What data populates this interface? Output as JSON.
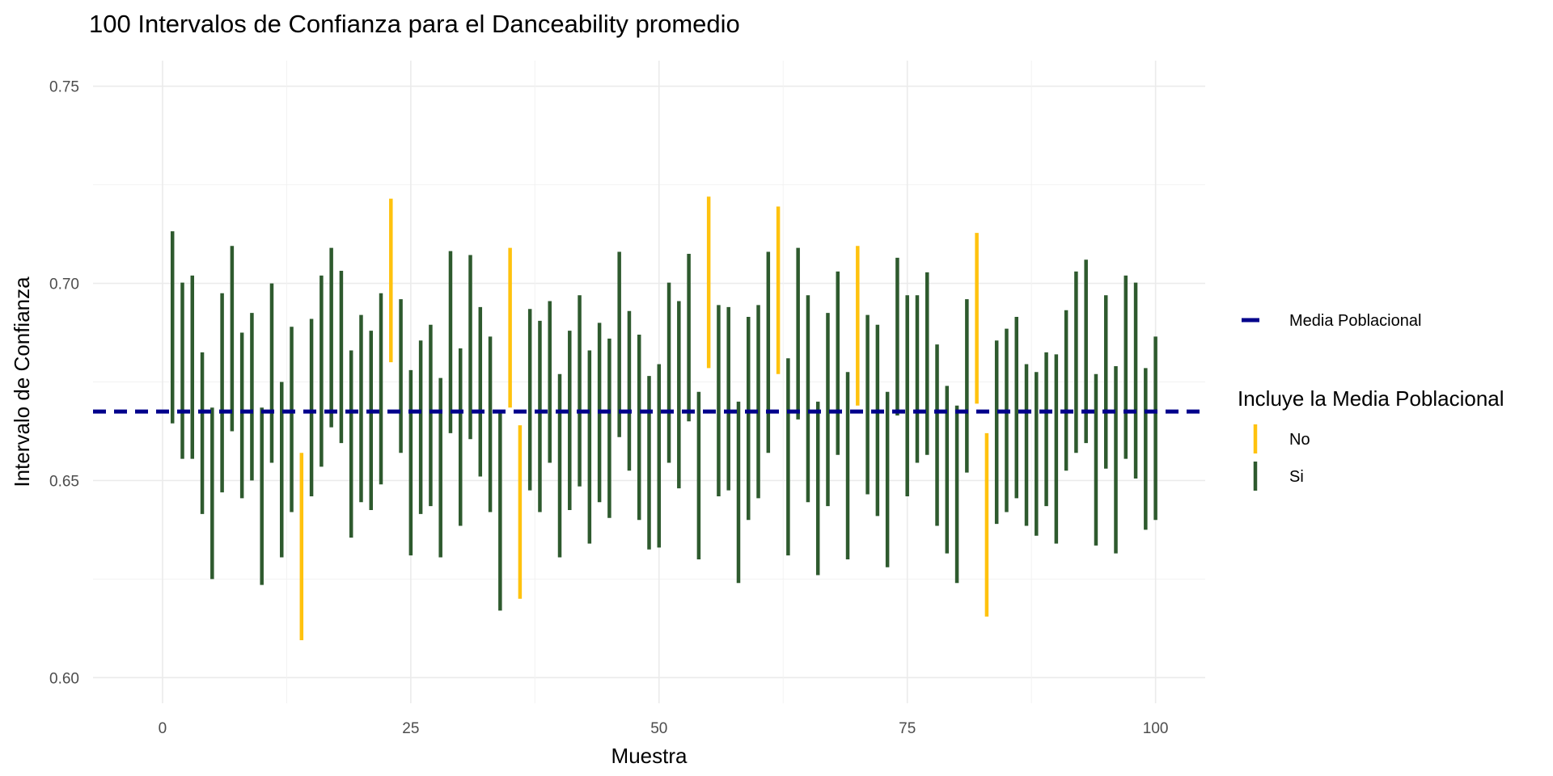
{
  "chart_data": {
    "type": "errorbar",
    "title": "100 Intervalos de Confianza para el Danceability promedio",
    "xlabel": "Muestra",
    "ylabel": "Intervalo de Confianza",
    "xlim": [
      -7,
      105
    ],
    "ylim": [
      0.5935,
      0.7565
    ],
    "x_ticks": [
      0,
      25,
      50,
      75,
      100
    ],
    "x_tick_labels": [
      "0",
      "25",
      "50",
      "75",
      "100"
    ],
    "y_ticks": [
      0.6,
      0.65,
      0.7,
      0.75
    ],
    "y_tick_labels": [
      "0.60",
      "0.65",
      "0.70",
      "0.75"
    ],
    "grid": true,
    "reference_line": {
      "value": 0.6675,
      "label": "Media Poblacional",
      "color": "#00008b",
      "style": "dashed"
    },
    "legend": {
      "position": "right",
      "title": "Incluye la Media Poblacional",
      "items": [
        {
          "label": "No",
          "color": "#ffc20e"
        },
        {
          "label": "Si",
          "color": "#2e5a2e"
        }
      ]
    },
    "intervals": [
      {
        "x": 1,
        "lower": 0.6645,
        "upper": 0.7132,
        "includes": "Si"
      },
      {
        "x": 2,
        "lower": 0.6555,
        "upper": 0.7002,
        "includes": "Si"
      },
      {
        "x": 3,
        "lower": 0.6555,
        "upper": 0.702,
        "includes": "Si"
      },
      {
        "x": 4,
        "lower": 0.6415,
        "upper": 0.6825,
        "includes": "Si"
      },
      {
        "x": 5,
        "lower": 0.625,
        "upper": 0.6685,
        "includes": "Si"
      },
      {
        "x": 6,
        "lower": 0.647,
        "upper": 0.6975,
        "includes": "Si"
      },
      {
        "x": 7,
        "lower": 0.6625,
        "upper": 0.7095,
        "includes": "Si"
      },
      {
        "x": 8,
        "lower": 0.6455,
        "upper": 0.6875,
        "includes": "Si"
      },
      {
        "x": 9,
        "lower": 0.65,
        "upper": 0.6925,
        "includes": "Si"
      },
      {
        "x": 10,
        "lower": 0.6235,
        "upper": 0.6685,
        "includes": "Si"
      },
      {
        "x": 11,
        "lower": 0.6545,
        "upper": 0.7,
        "includes": "Si"
      },
      {
        "x": 12,
        "lower": 0.6305,
        "upper": 0.675,
        "includes": "Si"
      },
      {
        "x": 13,
        "lower": 0.642,
        "upper": 0.689,
        "includes": "Si"
      },
      {
        "x": 14,
        "lower": 0.6095,
        "upper": 0.657,
        "includes": "No"
      },
      {
        "x": 15,
        "lower": 0.646,
        "upper": 0.691,
        "includes": "Si"
      },
      {
        "x": 16,
        "lower": 0.6535,
        "upper": 0.702,
        "includes": "Si"
      },
      {
        "x": 17,
        "lower": 0.6635,
        "upper": 0.709,
        "includes": "Si"
      },
      {
        "x": 18,
        "lower": 0.6595,
        "upper": 0.7032,
        "includes": "Si"
      },
      {
        "x": 19,
        "lower": 0.6355,
        "upper": 0.683,
        "includes": "Si"
      },
      {
        "x": 20,
        "lower": 0.6445,
        "upper": 0.692,
        "includes": "Si"
      },
      {
        "x": 21,
        "lower": 0.6425,
        "upper": 0.688,
        "includes": "Si"
      },
      {
        "x": 22,
        "lower": 0.649,
        "upper": 0.6975,
        "includes": "Si"
      },
      {
        "x": 23,
        "lower": 0.68,
        "upper": 0.7215,
        "includes": "No"
      },
      {
        "x": 24,
        "lower": 0.657,
        "upper": 0.696,
        "includes": "Si"
      },
      {
        "x": 25,
        "lower": 0.631,
        "upper": 0.678,
        "includes": "Si"
      },
      {
        "x": 26,
        "lower": 0.6415,
        "upper": 0.6855,
        "includes": "Si"
      },
      {
        "x": 27,
        "lower": 0.6435,
        "upper": 0.6895,
        "includes": "Si"
      },
      {
        "x": 28,
        "lower": 0.6305,
        "upper": 0.676,
        "includes": "Si"
      },
      {
        "x": 29,
        "lower": 0.662,
        "upper": 0.7082,
        "includes": "Si"
      },
      {
        "x": 30,
        "lower": 0.6385,
        "upper": 0.6835,
        "includes": "Si"
      },
      {
        "x": 31,
        "lower": 0.6605,
        "upper": 0.7072,
        "includes": "Si"
      },
      {
        "x": 32,
        "lower": 0.651,
        "upper": 0.694,
        "includes": "Si"
      },
      {
        "x": 33,
        "lower": 0.642,
        "upper": 0.6865,
        "includes": "Si"
      },
      {
        "x": 34,
        "lower": 0.617,
        "upper": 0.667,
        "includes": "Si"
      },
      {
        "x": 35,
        "lower": 0.6685,
        "upper": 0.709,
        "includes": "No"
      },
      {
        "x": 36,
        "lower": 0.62,
        "upper": 0.664,
        "includes": "No"
      },
      {
        "x": 37,
        "lower": 0.6475,
        "upper": 0.6935,
        "includes": "Si"
      },
      {
        "x": 38,
        "lower": 0.642,
        "upper": 0.6905,
        "includes": "Si"
      },
      {
        "x": 39,
        "lower": 0.6545,
        "upper": 0.6955,
        "includes": "Si"
      },
      {
        "x": 40,
        "lower": 0.6305,
        "upper": 0.677,
        "includes": "Si"
      },
      {
        "x": 41,
        "lower": 0.6425,
        "upper": 0.688,
        "includes": "Si"
      },
      {
        "x": 42,
        "lower": 0.6485,
        "upper": 0.697,
        "includes": "Si"
      },
      {
        "x": 43,
        "lower": 0.634,
        "upper": 0.683,
        "includes": "Si"
      },
      {
        "x": 44,
        "lower": 0.6445,
        "upper": 0.69,
        "includes": "Si"
      },
      {
        "x": 45,
        "lower": 0.6405,
        "upper": 0.686,
        "includes": "Si"
      },
      {
        "x": 46,
        "lower": 0.661,
        "upper": 0.708,
        "includes": "Si"
      },
      {
        "x": 47,
        "lower": 0.6525,
        "upper": 0.693,
        "includes": "Si"
      },
      {
        "x": 48,
        "lower": 0.64,
        "upper": 0.687,
        "includes": "Si"
      },
      {
        "x": 49,
        "lower": 0.6325,
        "upper": 0.6765,
        "includes": "Si"
      },
      {
        "x": 50,
        "lower": 0.633,
        "upper": 0.6795,
        "includes": "Si"
      },
      {
        "x": 51,
        "lower": 0.6545,
        "upper": 0.7002,
        "includes": "Si"
      },
      {
        "x": 52,
        "lower": 0.648,
        "upper": 0.6955,
        "includes": "Si"
      },
      {
        "x": 53,
        "lower": 0.665,
        "upper": 0.7075,
        "includes": "Si"
      },
      {
        "x": 54,
        "lower": 0.63,
        "upper": 0.6725,
        "includes": "Si"
      },
      {
        "x": 55,
        "lower": 0.6785,
        "upper": 0.722,
        "includes": "No"
      },
      {
        "x": 56,
        "lower": 0.646,
        "upper": 0.6945,
        "includes": "Si"
      },
      {
        "x": 57,
        "lower": 0.6475,
        "upper": 0.694,
        "includes": "Si"
      },
      {
        "x": 58,
        "lower": 0.624,
        "upper": 0.67,
        "includes": "Si"
      },
      {
        "x": 59,
        "lower": 0.64,
        "upper": 0.6915,
        "includes": "Si"
      },
      {
        "x": 60,
        "lower": 0.6455,
        "upper": 0.6945,
        "includes": "Si"
      },
      {
        "x": 61,
        "lower": 0.657,
        "upper": 0.708,
        "includes": "Si"
      },
      {
        "x": 62,
        "lower": 0.677,
        "upper": 0.7195,
        "includes": "No"
      },
      {
        "x": 63,
        "lower": 0.631,
        "upper": 0.681,
        "includes": "Si"
      },
      {
        "x": 64,
        "lower": 0.6655,
        "upper": 0.709,
        "includes": "Si"
      },
      {
        "x": 65,
        "lower": 0.6445,
        "upper": 0.697,
        "includes": "Si"
      },
      {
        "x": 66,
        "lower": 0.626,
        "upper": 0.67,
        "includes": "Si"
      },
      {
        "x": 67,
        "lower": 0.6435,
        "upper": 0.6925,
        "includes": "Si"
      },
      {
        "x": 68,
        "lower": 0.6565,
        "upper": 0.703,
        "includes": "Si"
      },
      {
        "x": 69,
        "lower": 0.63,
        "upper": 0.6775,
        "includes": "Si"
      },
      {
        "x": 70,
        "lower": 0.669,
        "upper": 0.7095,
        "includes": "No"
      },
      {
        "x": 71,
        "lower": 0.6465,
        "upper": 0.692,
        "includes": "Si"
      },
      {
        "x": 72,
        "lower": 0.641,
        "upper": 0.6895,
        "includes": "Si"
      },
      {
        "x": 73,
        "lower": 0.628,
        "upper": 0.6725,
        "includes": "Si"
      },
      {
        "x": 74,
        "lower": 0.6665,
        "upper": 0.7065,
        "includes": "Si"
      },
      {
        "x": 75,
        "lower": 0.646,
        "upper": 0.697,
        "includes": "Si"
      },
      {
        "x": 76,
        "lower": 0.6545,
        "upper": 0.697,
        "includes": "Si"
      },
      {
        "x": 77,
        "lower": 0.6565,
        "upper": 0.7028,
        "includes": "Si"
      },
      {
        "x": 78,
        "lower": 0.6385,
        "upper": 0.6845,
        "includes": "Si"
      },
      {
        "x": 79,
        "lower": 0.6315,
        "upper": 0.674,
        "includes": "Si"
      },
      {
        "x": 80,
        "lower": 0.624,
        "upper": 0.669,
        "includes": "Si"
      },
      {
        "x": 81,
        "lower": 0.652,
        "upper": 0.696,
        "includes": "Si"
      },
      {
        "x": 82,
        "lower": 0.6695,
        "upper": 0.7128,
        "includes": "No"
      },
      {
        "x": 83,
        "lower": 0.6155,
        "upper": 0.662,
        "includes": "No"
      },
      {
        "x": 84,
        "lower": 0.639,
        "upper": 0.6855,
        "includes": "Si"
      },
      {
        "x": 85,
        "lower": 0.642,
        "upper": 0.6885,
        "includes": "Si"
      },
      {
        "x": 86,
        "lower": 0.6455,
        "upper": 0.6915,
        "includes": "Si"
      },
      {
        "x": 87,
        "lower": 0.6385,
        "upper": 0.6795,
        "includes": "Si"
      },
      {
        "x": 88,
        "lower": 0.636,
        "upper": 0.6775,
        "includes": "Si"
      },
      {
        "x": 89,
        "lower": 0.6435,
        "upper": 0.6825,
        "includes": "Si"
      },
      {
        "x": 90,
        "lower": 0.634,
        "upper": 0.682,
        "includes": "Si"
      },
      {
        "x": 91,
        "lower": 0.6525,
        "upper": 0.6932,
        "includes": "Si"
      },
      {
        "x": 92,
        "lower": 0.657,
        "upper": 0.703,
        "includes": "Si"
      },
      {
        "x": 93,
        "lower": 0.6595,
        "upper": 0.706,
        "includes": "Si"
      },
      {
        "x": 94,
        "lower": 0.6335,
        "upper": 0.677,
        "includes": "Si"
      },
      {
        "x": 95,
        "lower": 0.653,
        "upper": 0.697,
        "includes": "Si"
      },
      {
        "x": 96,
        "lower": 0.6315,
        "upper": 0.679,
        "includes": "Si"
      },
      {
        "x": 97,
        "lower": 0.6555,
        "upper": 0.702,
        "includes": "Si"
      },
      {
        "x": 98,
        "lower": 0.6505,
        "upper": 0.7002,
        "includes": "Si"
      },
      {
        "x": 99,
        "lower": 0.6375,
        "upper": 0.6785,
        "includes": "Si"
      },
      {
        "x": 100,
        "lower": 0.64,
        "upper": 0.6865,
        "includes": "Si"
      }
    ]
  }
}
